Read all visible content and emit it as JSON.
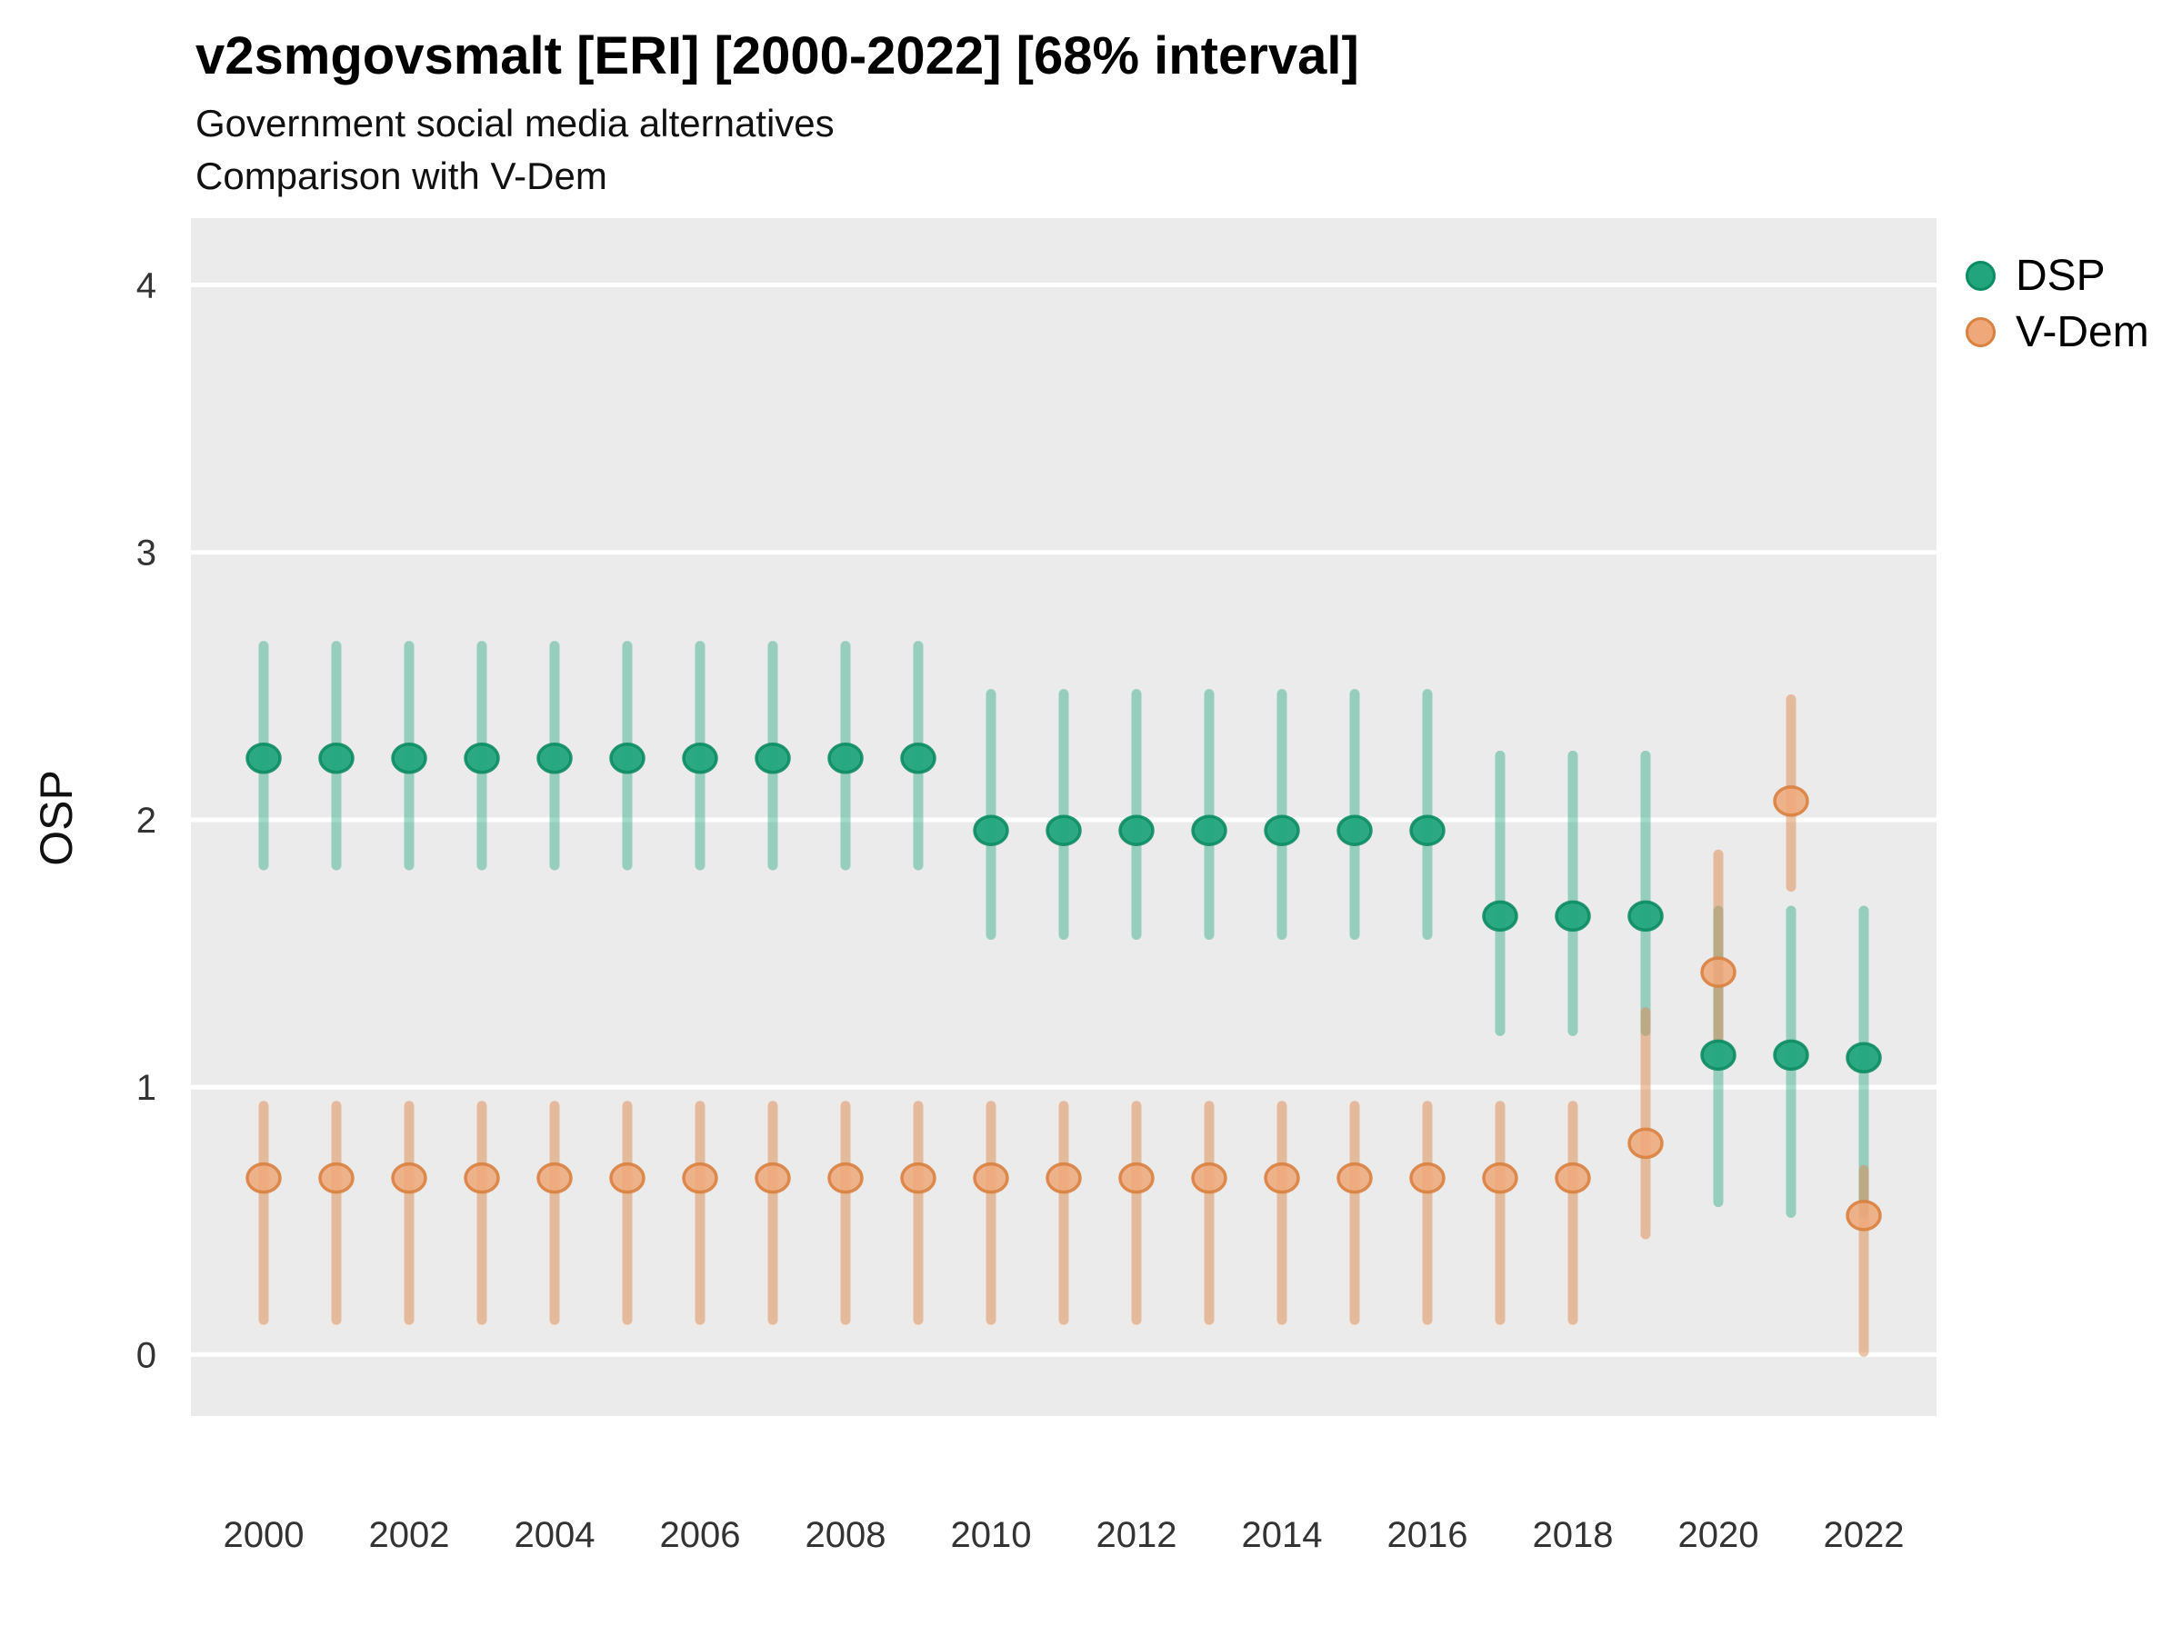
{
  "header": {
    "title": "v2smgovsmalt [ERI] [2000-2022] [68% interval]",
    "subtitle1": "Government social media alternatives",
    "subtitle2": "Comparison with V-Dem"
  },
  "legend": {
    "items": [
      {
        "label": "DSP",
        "color": "#22a57d",
        "stroke": "#0c8c61"
      },
      {
        "label": "V-Dem",
        "color": "#efa87a",
        "stroke": "#d9813f"
      }
    ]
  },
  "chart_data": {
    "type": "scatter",
    "subtype": "pointrange",
    "title": "v2smgovsmalt [ERI] [2000-2022] [68% interval]",
    "xlabel": "",
    "ylabel": "OSP",
    "interval_note": "68% interval",
    "x": [
      2000,
      2001,
      2002,
      2003,
      2004,
      2005,
      2006,
      2007,
      2008,
      2009,
      2010,
      2011,
      2012,
      2013,
      2014,
      2015,
      2016,
      2017,
      2018,
      2019,
      2020,
      2021,
      2022
    ],
    "x_ticks": [
      2000,
      2002,
      2004,
      2006,
      2008,
      2010,
      2012,
      2014,
      2016,
      2018,
      2020,
      2022
    ],
    "y_ticks": [
      0,
      1,
      2,
      3,
      4
    ],
    "xlim": [
      1999,
      2023
    ],
    "ylim": [
      -0.23,
      4.25
    ],
    "grid": "major-horizontal-white-on-grey",
    "legend_position": "right-top",
    "panel_bg": "#ebebeb",
    "grid_color": "#ffffff",
    "series": [
      {
        "name": "DSP",
        "point_color": "#22a57d",
        "point_stroke": "#0c8c61",
        "line_color": "#23a57d",
        "line_opacity": 0.42,
        "est": [
          2.23,
          2.23,
          2.23,
          2.23,
          2.23,
          2.23,
          2.23,
          2.23,
          2.23,
          2.23,
          1.96,
          1.96,
          1.96,
          1.96,
          1.96,
          1.96,
          1.96,
          1.64,
          1.64,
          1.64,
          1.12,
          1.12,
          1.11
        ],
        "lo": [
          1.83,
          1.83,
          1.83,
          1.83,
          1.83,
          1.83,
          1.83,
          1.83,
          1.83,
          1.83,
          1.57,
          1.57,
          1.57,
          1.57,
          1.57,
          1.57,
          1.57,
          1.21,
          1.21,
          1.21,
          0.57,
          0.53,
          0.53
        ],
        "hi": [
          2.65,
          2.65,
          2.65,
          2.65,
          2.65,
          2.65,
          2.65,
          2.65,
          2.65,
          2.65,
          2.47,
          2.47,
          2.47,
          2.47,
          2.47,
          2.47,
          2.47,
          2.24,
          2.24,
          2.24,
          1.66,
          1.66,
          1.66
        ]
      },
      {
        "name": "V-Dem",
        "point_color": "#efa87a",
        "point_stroke": "#d9813f",
        "line_color": "#dd8a4f",
        "line_opacity": 0.5,
        "est": [
          0.66,
          0.66,
          0.66,
          0.66,
          0.66,
          0.66,
          0.66,
          0.66,
          0.66,
          0.66,
          0.66,
          0.66,
          0.66,
          0.66,
          0.66,
          0.66,
          0.66,
          0.66,
          0.66,
          0.79,
          1.43,
          2.07,
          0.52
        ],
        "lo": [
          0.13,
          0.13,
          0.13,
          0.13,
          0.13,
          0.13,
          0.13,
          0.13,
          0.13,
          0.13,
          0.13,
          0.13,
          0.13,
          0.13,
          0.13,
          0.13,
          0.13,
          0.13,
          0.13,
          0.45,
          1.18,
          1.75,
          0.01
        ],
        "hi": [
          0.93,
          0.93,
          0.93,
          0.93,
          0.93,
          0.93,
          0.93,
          0.93,
          0.93,
          0.93,
          0.93,
          0.93,
          0.93,
          0.93,
          0.93,
          0.93,
          0.93,
          0.93,
          0.93,
          1.28,
          1.87,
          2.45,
          0.69
        ]
      }
    ]
  }
}
